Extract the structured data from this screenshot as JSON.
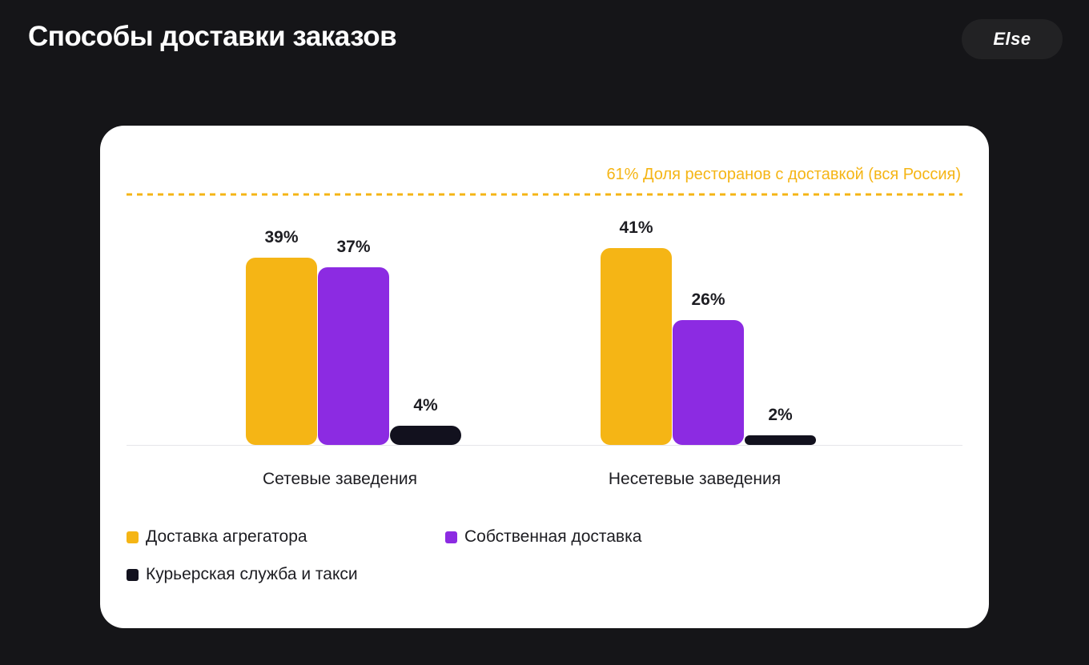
{
  "header": {
    "title": "Способы доставки заказов",
    "logo_text": "Else"
  },
  "chart_data": {
    "type": "bar",
    "categories": [
      "Сетевые заведения",
      "Несетевые заведения"
    ],
    "series": [
      {
        "name": "Доставка агрегатора",
        "values": [
          39,
          41
        ],
        "labels": [
          "39%",
          "41%"
        ],
        "color": "#F5B515"
      },
      {
        "name": "Собственная доставка",
        "values": [
          37,
          26
        ],
        "labels": [
          "37%",
          "26%"
        ],
        "color": "#8C2BE2"
      },
      {
        "name": "Курьерская служба и такси",
        "values": [
          4,
          2
        ],
        "labels": [
          "4%",
          "2%"
        ],
        "color": "#12111E"
      }
    ],
    "reference_line": {
      "value": 61,
      "label": "61% Доля ресторанов с доставкой (вся Россия)",
      "color": "#F5B515",
      "style": "dashed"
    },
    "legend_placement": "bottom-left",
    "grid": false,
    "ylim": [
      0,
      61
    ]
  }
}
